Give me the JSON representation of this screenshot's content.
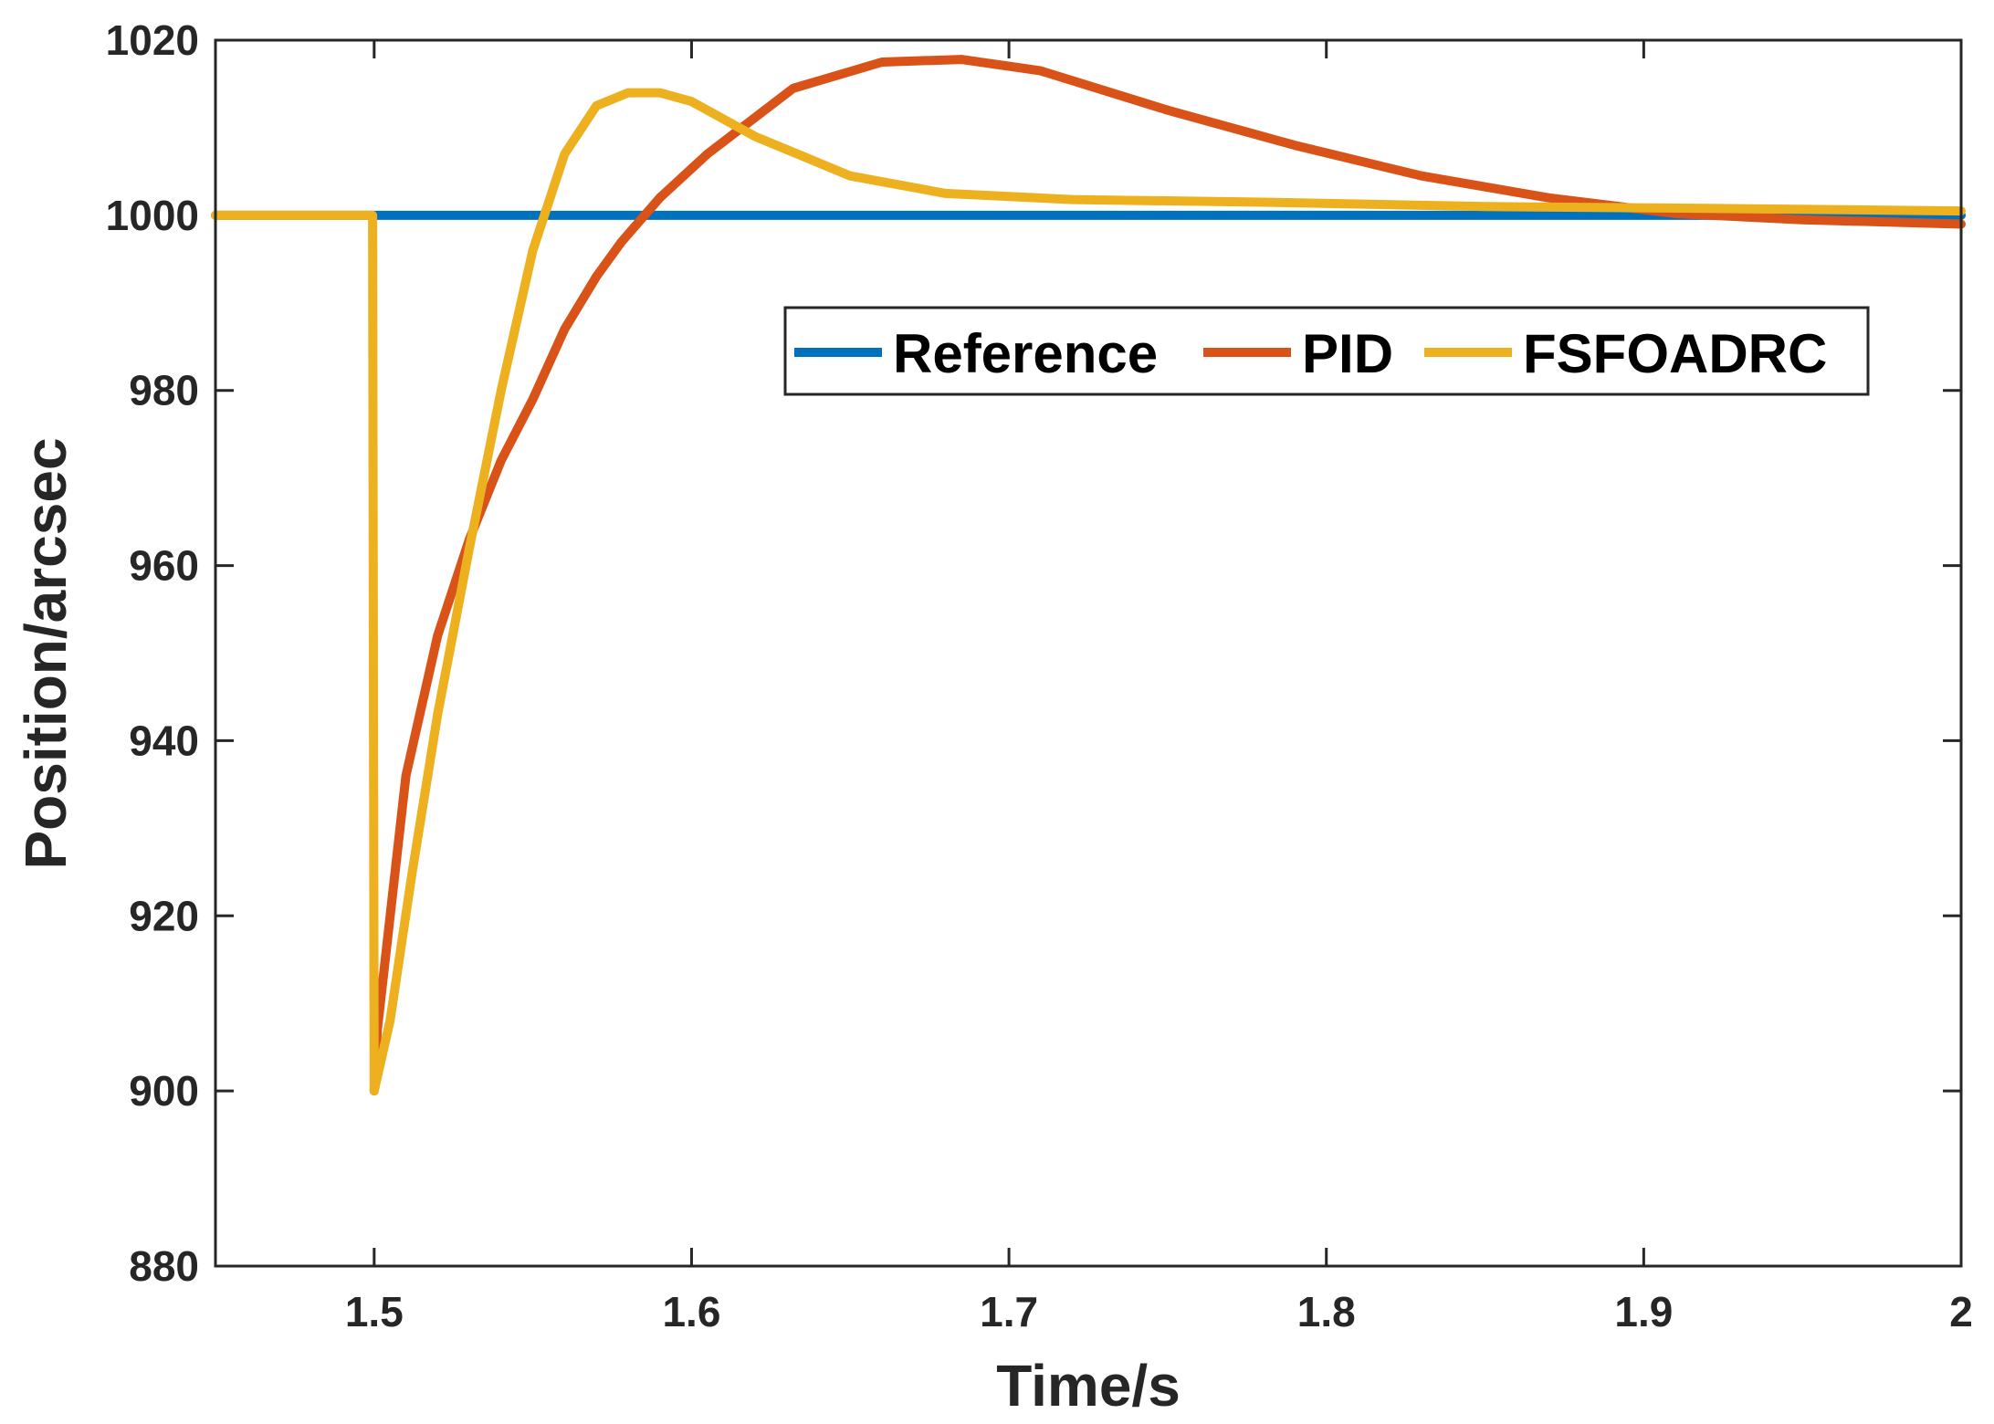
{
  "chart_data": {
    "type": "line",
    "title": "",
    "xlabel": "Time/s",
    "ylabel": "Position/arcsec",
    "xlim": [
      1.45,
      2.0
    ],
    "ylim": [
      880,
      1020
    ],
    "xticks": [
      1.5,
      1.6,
      1.7,
      1.8,
      1.9,
      2.0
    ],
    "xtick_labels": [
      "1.5",
      "1.6",
      "1.7",
      "1.8",
      "1.9",
      "2"
    ],
    "yticks": [
      880,
      900,
      920,
      940,
      960,
      980,
      1000,
      1020
    ],
    "ytick_labels": [
      "880",
      "900",
      "920",
      "940",
      "960",
      "980",
      "1000",
      "1020"
    ],
    "grid": false,
    "legend_position": "upper-right-inside",
    "series": [
      {
        "name": "Reference",
        "color": "#0072BD",
        "x": [
          1.45,
          2.0
        ],
        "y": [
          1000,
          1000
        ]
      },
      {
        "name": "PID",
        "color": "#D95319",
        "x": [
          1.5,
          1.501,
          1.51,
          1.52,
          1.53,
          1.54,
          1.55,
          1.56,
          1.57,
          1.578,
          1.59,
          1.605,
          1.632,
          1.66,
          1.685,
          1.71,
          1.75,
          1.79,
          1.83,
          1.87,
          1.91,
          1.95,
          2.0
        ],
        "y": [
          900,
          907,
          936,
          952,
          963,
          972,
          979,
          987,
          993,
          997,
          1002,
          1007,
          1014.5,
          1017.5,
          1017.8,
          1016.5,
          1012,
          1008,
          1004.5,
          1002,
          1000.2,
          999.5,
          999
        ]
      },
      {
        "name": "FSFOADRC",
        "color": "#EDB120",
        "x": [
          1.45,
          1.4995,
          1.5,
          1.505,
          1.512,
          1.52,
          1.53,
          1.54,
          1.55,
          1.56,
          1.57,
          1.58,
          1.59,
          1.6,
          1.62,
          1.65,
          1.68,
          1.72,
          1.78,
          1.85,
          1.92,
          2.0
        ],
        "y": [
          1000,
          1000,
          900,
          908,
          925,
          943,
          962,
          980,
          996,
          1007,
          1012.5,
          1014,
          1014,
          1013,
          1009,
          1004.5,
          1002.5,
          1001.8,
          1001.5,
          1001,
          1000.8,
          1000.5
        ]
      }
    ]
  }
}
